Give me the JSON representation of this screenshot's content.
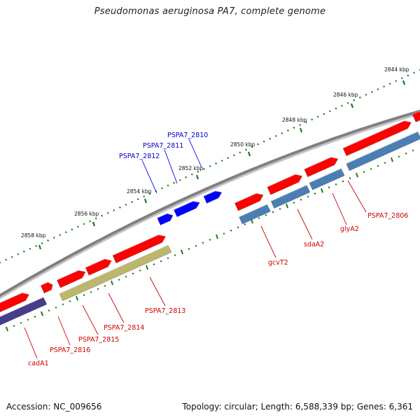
{
  "title": "Pseudomonas aeruginosa PA7, complete genome",
  "footer": {
    "accession": "Accession: NC_009656",
    "topology": "Topology: circular; Length: 6,588,339 bp; Genes: 6,361"
  },
  "colors": {
    "backbone": "#808080",
    "forward_gene": "#ff0000",
    "reverse_gene": "#4a7fb5",
    "highlight_gene": "#0000ff",
    "pseudo_gene": "#bdb76b",
    "dark_gene": "#483d8b",
    "tick": "#1a7a1a",
    "forward_label": "#cc0000",
    "highlight_label": "#0000cc"
  },
  "ticks": [
    {
      "label": "2844 kbp"
    },
    {
      "label": "2846 kbp"
    },
    {
      "label": "2848 kbp"
    },
    {
      "label": "2850 kbp"
    },
    {
      "label": "2852 kbp"
    },
    {
      "label": "2854 kbp"
    },
    {
      "label": "2856 kbp"
    },
    {
      "label": "2858 kbp"
    }
  ],
  "genes": [
    {
      "label": "PSPA7_2810",
      "category": "highlight"
    },
    {
      "label": "PSPA7_2811",
      "category": "highlight"
    },
    {
      "label": "PSPA7_2812",
      "category": "highlight"
    },
    {
      "label": "PSPA7_2806",
      "category": "forward"
    },
    {
      "label": "glyA2",
      "category": "forward"
    },
    {
      "label": "sdaA2",
      "category": "forward"
    },
    {
      "label": "gcvT2",
      "category": "forward"
    },
    {
      "label": "PSPA7_2813",
      "category": "forward"
    },
    {
      "label": "PSPA7_2814",
      "category": "forward"
    },
    {
      "label": "PSPA7_2815",
      "category": "forward"
    },
    {
      "label": "PSPA7_2816",
      "category": "forward"
    },
    {
      "label": "cadA1",
      "category": "forward"
    }
  ]
}
